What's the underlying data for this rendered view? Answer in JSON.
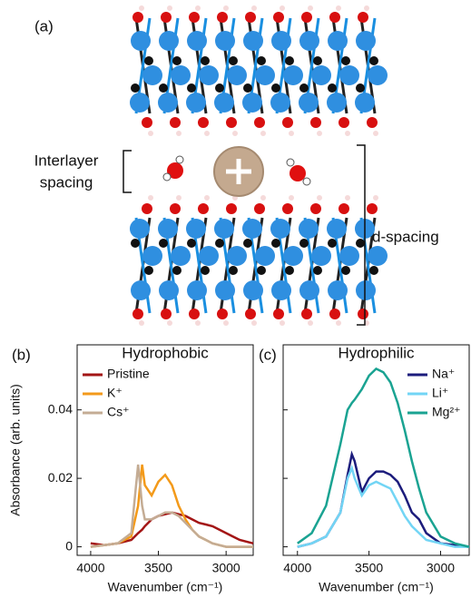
{
  "panel_a": {
    "label": "(a)",
    "interlayer_label": [
      "Interlayer",
      "spacing"
    ],
    "d_spacing_label": "d-spacing"
  },
  "chart_data": [
    {
      "type": "line",
      "panel_label": "(b)",
      "title": "Hydrophobic",
      "xlabel": "Wavenumber (cm⁻¹)",
      "ylabel": "Absorbance (arb. units)",
      "x": [
        4000,
        3900,
        3800,
        3700,
        3650,
        3620,
        3600,
        3550,
        3500,
        3450,
        3400,
        3350,
        3300,
        3250,
        3200,
        3150,
        3100,
        3000,
        2900,
        2800
      ],
      "series": [
        {
          "name": "Pristine",
          "color": "#a31515",
          "values": [
            0.001,
            0.0005,
            0.001,
            0.002,
            0.004,
            0.005,
            0.006,
            0.008,
            0.009,
            0.0095,
            0.01,
            0.0095,
            0.009,
            0.008,
            0.007,
            0.0065,
            0.006,
            0.004,
            0.002,
            0.001
          ]
        },
        {
          "name": "K⁺",
          "color": "#f39a1a",
          "values": [
            0,
            0.0005,
            0.001,
            0.003,
            0.012,
            0.024,
            0.018,
            0.015,
            0.019,
            0.021,
            0.018,
            0.012,
            0.008,
            0.005,
            0.003,
            0.002,
            0.001,
            0,
            0,
            0
          ]
        },
        {
          "name": "Cs⁺",
          "color": "#c4ac94",
          "values": [
            0,
            0.0005,
            0.001,
            0.004,
            0.024,
            0.012,
            0.008,
            0.008,
            0.009,
            0.01,
            0.01,
            0.009,
            0.007,
            0.005,
            0.003,
            0.002,
            0.001,
            0,
            0,
            0
          ]
        }
      ],
      "xlim": [
        4100,
        2800
      ],
      "xticks": [
        4000,
        3500,
        3000
      ],
      "ylim": [
        -0.0025,
        0.059
      ],
      "yticks": [
        0,
        0.02,
        0.04
      ],
      "show_ytick_labels": true,
      "legend": "upper left"
    },
    {
      "type": "line",
      "panel_label": "(c)",
      "title": "Hydrophilic",
      "xlabel": "Wavenumber (cm⁻¹)",
      "x": [
        4000,
        3900,
        3800,
        3700,
        3650,
        3620,
        3600,
        3550,
        3500,
        3450,
        3400,
        3350,
        3300,
        3250,
        3200,
        3150,
        3100,
        3000,
        2900,
        2800
      ],
      "series": [
        {
          "name": "Na⁺",
          "color": "#1c1c7c",
          "values": [
            0,
            0.001,
            0.003,
            0.01,
            0.021,
            0.027,
            0.025,
            0.016,
            0.02,
            0.022,
            0.022,
            0.021,
            0.019,
            0.015,
            0.01,
            0.008,
            0.004,
            0.001,
            0.0005,
            0
          ]
        },
        {
          "name": "Li⁺",
          "color": "#72d5f5",
          "values": [
            0,
            0.001,
            0.003,
            0.01,
            0.02,
            0.023,
            0.02,
            0.015,
            0.018,
            0.019,
            0.018,
            0.017,
            0.013,
            0.009,
            0.006,
            0.004,
            0.002,
            0.001,
            0,
            0
          ]
        },
        {
          "name": "Mg²⁺",
          "color": "#1aa392",
          "values": [
            0.001,
            0.004,
            0.012,
            0.03,
            0.04,
            0.042,
            0.043,
            0.046,
            0.05,
            0.052,
            0.051,
            0.048,
            0.042,
            0.034,
            0.025,
            0.017,
            0.01,
            0.003,
            0.001,
            0
          ]
        }
      ],
      "xlim": [
        4100,
        2800
      ],
      "xticks": [
        4000,
        3500,
        3000
      ],
      "ylim": [
        -0.0025,
        0.059
      ],
      "yticks": [
        0,
        0.02,
        0.04
      ],
      "show_ytick_labels": false,
      "legend": "upper right"
    }
  ]
}
